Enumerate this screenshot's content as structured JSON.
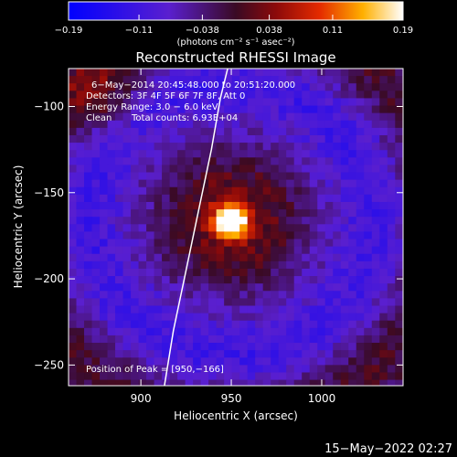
{
  "chart_data": {
    "type": "heatmap",
    "title": "Reconstructed RHESSI Image",
    "xlabel": "Heliocentric X (arcsec)",
    "ylabel": "Heliocentric Y (arcsec)",
    "xlim": [
      860,
      1045
    ],
    "ylim": [
      -262,
      -78
    ],
    "x_ticks": [
      900,
      950,
      1000
    ],
    "y_ticks": [
      -100,
      -150,
      -200,
      -250
    ],
    "x_tick_labels": [
      "900",
      "950",
      "1000"
    ],
    "y_tick_labels": [
      "−100",
      "−150",
      "−200",
      "−250"
    ],
    "colorbar": {
      "range": [
        -0.19,
        0.19
      ],
      "ticks": [
        -0.19,
        -0.11,
        -0.038,
        0.038,
        0.11,
        0.19
      ],
      "tick_labels": [
        "−0.19",
        "−0.11",
        "−0.038",
        "0.038",
        "0.11",
        "0.19"
      ],
      "unit_label": "(photons cm⁻² s⁻¹ asec⁻²)"
    },
    "annotations": {
      "time_range": "6−May−2014 20:45:48.000 to 20:51:20.000",
      "detectors": "Detectors: 3F 4F 5F 6F 7F 8F, Att 0",
      "energy": "Energy Range: 3.0 − 6.0 keV",
      "method": "Clean",
      "counts": "Total counts: 6.93E+04",
      "peak": "Position of Peak = [950,−166]"
    },
    "peak": {
      "x": 950,
      "y": -166,
      "value": 0.19
    },
    "limb_curve": [
      [
        913,
        -262
      ],
      [
        918,
        -230
      ],
      [
        925,
        -195
      ],
      [
        932,
        -160
      ],
      [
        939,
        -125
      ],
      [
        944,
        -95
      ],
      [
        948,
        -78
      ]
    ],
    "timestamp": "15−May−2022 02:27"
  }
}
